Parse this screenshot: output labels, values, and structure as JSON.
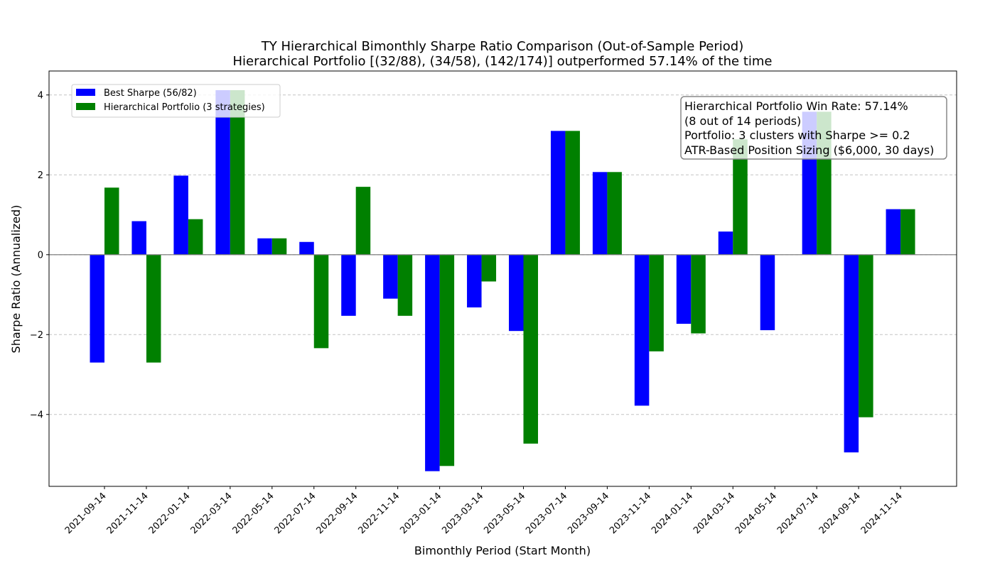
{
  "chart_data": {
    "type": "bar",
    "title_line1": "TY Hierarchical Bimonthly Sharpe Ratio Comparison (Out-of-Sample Period)",
    "title_line2": "Hierarchical Portfolio [(32/88), (34/58), (142/174)] outperformed 57.14% of the time",
    "xlabel": "Bimonthly Period (Start Month)",
    "ylabel": "Sharpe Ratio (Annualized)",
    "ylim": [
      -5.8,
      4.6
    ],
    "yticks": [
      -4,
      -2,
      0,
      2,
      4
    ],
    "ytick_labels": [
      "−4",
      "−2",
      "0",
      "2",
      "4"
    ],
    "grid": "y, dashed",
    "legend_position": "top-left",
    "categories": [
      "2021-09-14",
      "2021-11-14",
      "2022-01-14",
      "2022-03-14",
      "2022-05-14",
      "2022-07-14",
      "2022-09-14",
      "2022-11-14",
      "2023-01-14",
      "2023-03-14",
      "2023-05-14",
      "2023-07-14",
      "2023-09-14",
      "2023-11-14",
      "2024-01-14",
      "2024-03-14",
      "2024-05-14",
      "2024-07-14",
      "2024-09-14",
      "2024-11-14"
    ],
    "series": [
      {
        "name": "Best Sharpe (56/82)",
        "color": "#0000ff",
        "values": [
          -2.7,
          0.84,
          1.98,
          4.12,
          0.41,
          0.32,
          -1.53,
          -1.1,
          -5.42,
          -1.32,
          -1.91,
          3.1,
          2.07,
          -3.78,
          -1.73,
          0.58,
          -1.89,
          3.58,
          -4.95,
          1.14
        ]
      },
      {
        "name": "Hierarchical Portfolio (3 strategies)",
        "color": "#008000",
        "values": [
          1.68,
          -2.7,
          0.89,
          4.12,
          0.41,
          -2.34,
          1.7,
          -1.53,
          -5.29,
          -0.67,
          -4.73,
          3.1,
          2.07,
          -2.42,
          -1.97,
          2.89,
          0.0,
          3.58,
          -4.07,
          1.14
        ]
      }
    ],
    "annotation_lines": [
      "Hierarchical Portfolio Win Rate: 57.14%",
      "(8 out of 14 periods)",
      "Portfolio: 3 clusters with Sharpe >= 0.2",
      "ATR-Based Position Sizing ($6,000, 30 days)"
    ]
  }
}
